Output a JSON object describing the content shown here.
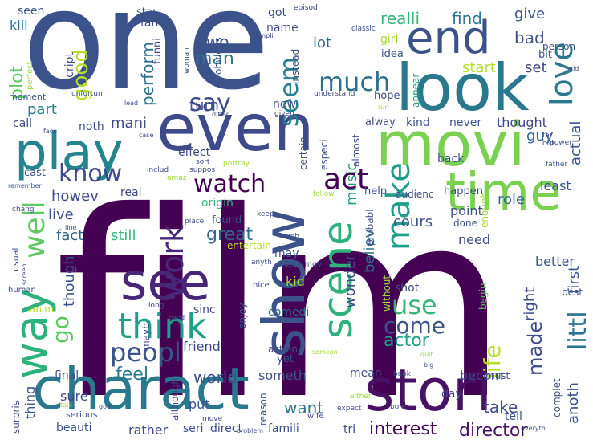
{
  "words": [
    {
      "text": "film",
      "color": "#440154"
    },
    {
      "text": "one",
      "color": "#3b528b"
    },
    {
      "text": "movi",
      "color": "#7ad151"
    },
    {
      "text": "charact",
      "color": "#2a788e"
    },
    {
      "text": "stori",
      "color": "#471164"
    },
    {
      "text": "look",
      "color": "#2a788e"
    },
    {
      "text": "even",
      "color": "#3e4a89"
    },
    {
      "text": "play",
      "color": "#25858e"
    },
    {
      "text": "time",
      "color": "#7ad151"
    },
    {
      "text": "show",
      "color": "#3b528b"
    },
    {
      "text": "end",
      "color": "#3b528b"
    },
    {
      "text": "see",
      "color": "#482677"
    },
    {
      "text": "way",
      "color": "#2db27d"
    },
    {
      "text": "scene",
      "color": "#2db27d"
    },
    {
      "text": "think",
      "color": "#1f9e89"
    },
    {
      "text": "make",
      "color": "#1f9e89"
    },
    {
      "text": "work",
      "color": "#482878"
    },
    {
      "text": "love",
      "color": "#2a788e"
    },
    {
      "text": "good",
      "color": "#b5de2b"
    },
    {
      "text": "plot",
      "color": "#5ec962"
    },
    {
      "text": "well",
      "color": "#5ec962"
    },
    {
      "text": "watch",
      "color": "#440154"
    },
    {
      "text": "much",
      "color": "#2c728e"
    },
    {
      "text": "act",
      "color": "#440154"
    },
    {
      "text": "know",
      "color": "#3e4a89"
    },
    {
      "text": "say",
      "color": "#3e4a89"
    },
    {
      "text": "seem",
      "color": "#287d8e"
    },
    {
      "text": "peopl",
      "color": "#3b528b"
    },
    {
      "text": "use",
      "color": "#35b779"
    },
    {
      "text": "littl",
      "color": "#2c728e"
    },
    {
      "text": "life",
      "color": "#b5de2b"
    },
    {
      "text": "come",
      "color": "#3b528b"
    },
    {
      "text": "made",
      "color": "#3e4a89"
    },
    {
      "text": "go",
      "color": "#5ec962"
    },
    {
      "text": "great",
      "color": "#31688e"
    },
    {
      "text": "actor",
      "color": "#1f9e89"
    },
    {
      "text": "interest",
      "color": "#440154"
    },
    {
      "text": "director",
      "color": "#471164"
    },
    {
      "text": "world",
      "color": "#3b528b"
    },
    {
      "text": "feel",
      "color": "#2a788e"
    },
    {
      "text": "want",
      "color": "#2c728e"
    },
    {
      "text": "take",
      "color": "#3e4a89"
    },
    {
      "text": "man",
      "color": "#2c728e"
    },
    {
      "text": "two",
      "color": "#3b528b"
    },
    {
      "text": "realli",
      "color": "#35b779"
    },
    {
      "text": "find",
      "color": "#2a788e"
    },
    {
      "text": "give",
      "color": "#3b528b"
    },
    {
      "text": "bad",
      "color": "#3b528b"
    },
    {
      "text": "lot",
      "color": "#31688e"
    },
    {
      "text": "start",
      "color": "#b5de2b"
    },
    {
      "text": "set",
      "color": "#3e4a89"
    },
    {
      "text": "perform",
      "color": "#2c728e"
    },
    {
      "text": "turn",
      "color": "#3b528b"
    },
    {
      "text": "part",
      "color": "#287d8e"
    },
    {
      "text": "mani",
      "color": "#3e4a89"
    },
    {
      "text": "howev",
      "color": "#3e4a89"
    },
    {
      "text": "live",
      "color": "#3b528b"
    },
    {
      "text": "fact",
      "color": "#31688e"
    },
    {
      "text": "still",
      "color": "#35b779"
    },
    {
      "text": "though",
      "color": "#3b528b"
    },
    {
      "text": "believ",
      "color": "#2c728e"
    },
    {
      "text": "wonder",
      "color": "#3e4a89"
    },
    {
      "text": "music",
      "color": "#1f9e89"
    },
    {
      "text": "actual",
      "color": "#3b528b"
    },
    {
      "text": "guy",
      "color": "#31688e"
    },
    {
      "text": "thought",
      "color": "#3e4a89"
    },
    {
      "text": "never",
      "color": "#3b528b"
    },
    {
      "text": "first",
      "color": "#3b528b"
    },
    {
      "text": "right",
      "color": "#3e4a89"
    },
    {
      "text": "role",
      "color": "#31688e"
    },
    {
      "text": "least",
      "color": "#3b528b"
    },
    {
      "text": "cours",
      "color": "#3b528b"
    },
    {
      "text": "point",
      "color": "#3b528b"
    },
    {
      "text": "need",
      "color": "#3e4a89"
    },
    {
      "text": "better",
      "color": "#3b528b"
    },
    {
      "text": "anoth",
      "color": "#3b528b"
    },
    {
      "text": "shot",
      "color": "#3e4a89"
    },
    {
      "text": "kid",
      "color": "#a0da39"
    },
    {
      "text": "comedi",
      "color": "#31688e"
    },
    {
      "text": "friend",
      "color": "#3e4a89"
    },
    {
      "text": "someth",
      "color": "#3b528b"
    },
    {
      "text": "becom",
      "color": "#3e4a89"
    },
    {
      "text": "tell",
      "color": "#3b528b"
    },
    {
      "text": "day",
      "color": "#3e4a89"
    },
    {
      "text": "mean",
      "color": "#3e4a89"
    },
    {
      "text": "thing",
      "color": "#3b528b"
    },
    {
      "text": "sure",
      "color": "#3e4a89"
    },
    {
      "text": "final",
      "color": "#3b528b"
    },
    {
      "text": "beauti",
      "color": "#3b528b"
    },
    {
      "text": "rather",
      "color": "#3e4a89"
    },
    {
      "text": "seri",
      "color": "#3b528b"
    },
    {
      "text": "direct",
      "color": "#3e4a89"
    },
    {
      "text": "famili",
      "color": "#3b528b"
    },
    {
      "text": "tri",
      "color": "#3e4a89"
    },
    {
      "text": "put",
      "color": "#3b528b"
    },
    {
      "text": "real",
      "color": "#3e4a89"
    },
    {
      "text": "origin",
      "color": "#35b779"
    },
    {
      "text": "found",
      "color": "#3b528b"
    },
    {
      "text": "effect",
      "color": "#3e4a89"
    },
    {
      "text": "help",
      "color": "#3b528b"
    },
    {
      "text": "back",
      "color": "#3b528b"
    },
    {
      "text": "happen",
      "color": "#3e4a89"
    },
    {
      "text": "kind",
      "color": "#3b528b"
    },
    {
      "text": "alway",
      "color": "#3e4a89"
    },
    {
      "text": "noth",
      "color": "#3b528b"
    },
    {
      "text": "call",
      "color": "#3e4a89"
    },
    {
      "text": "cast",
      "color": "#3b528b"
    },
    {
      "text": "new",
      "color": "#3b528b"
    },
    {
      "text": "got",
      "color": "#3e4a89"
    },
    {
      "text": "star",
      "color": "#3b528b"
    },
    {
      "text": "fan",
      "color": "#3e4a89"
    },
    {
      "text": "seen",
      "color": "#3b528b"
    },
    {
      "text": "kill",
      "color": "#2c728e"
    },
    {
      "text": "name",
      "color": "#3e4a89"
    },
    {
      "text": "idea",
      "color": "#3b528b"
    },
    {
      "text": "girl",
      "color": "#a0da39"
    },
    {
      "text": "bit",
      "color": "#3b528b"
    },
    {
      "text": "hope",
      "color": "#3e4a89"
    },
    {
      "text": "script",
      "color": "#3b528b"
    },
    {
      "text": "funni",
      "color": "#3e4a89"
    },
    {
      "text": "obvious",
      "color": "#3b528b"
    },
    {
      "text": "instead",
      "color": "#3e4a89"
    },
    {
      "text": "appear",
      "color": "#1f9e89"
    },
    {
      "text": "person",
      "color": "#3b528b"
    },
    {
      "text": "certain",
      "color": "#3e4a89"
    },
    {
      "text": "especi",
      "color": "#3b528b"
    },
    {
      "text": "almost",
      "color": "#3e4a89"
    },
    {
      "text": "audienc",
      "color": "#3e4a89"
    },
    {
      "text": "enough",
      "color": "#a0da39"
    },
    {
      "text": "done",
      "color": "#3b528b"
    },
    {
      "text": "entertain",
      "color": "#b5de2b"
    },
    {
      "text": "may",
      "color": "#3b528b"
    },
    {
      "text": "probabl",
      "color": "#3e4a89"
    },
    {
      "text": "without",
      "color": "#a0da39"
    },
    {
      "text": "begin",
      "color": "#5ec962"
    },
    {
      "text": "mayb",
      "color": "#3e4a89"
    },
    {
      "text": "enjoy",
      "color": "#3b528b"
    },
    {
      "text": "action",
      "color": "#3e4a89"
    },
    {
      "text": "yet",
      "color": "#3b528b"
    },
    {
      "text": "sinc",
      "color": "#3e4a89"
    },
    {
      "text": "anim",
      "color": "#b5de2b"
    },
    {
      "text": "although",
      "color": "#3e4a89"
    },
    {
      "text": "reason",
      "color": "#3b528b"
    },
    {
      "text": "must",
      "color": "#3e4a89"
    },
    {
      "text": "complet",
      "color": "#3b528b"
    },
    {
      "text": "surpris",
      "color": "#3e4a89"
    },
    {
      "text": "serious",
      "color": "#3b528b"
    },
    {
      "text": "best",
      "color": "#3e4a89"
    },
    {
      "text": "usual",
      "color": "#3b528b"
    },
    {
      "text": "human",
      "color": "#3e4a89"
    },
    {
      "text": "watch movi",
      "color": "#3b528b"
    },
    {
      "text": "nice",
      "color": "#3e4a89"
    },
    {
      "text": "place",
      "color": "#3b528b"
    },
    {
      "text": "laugh",
      "color": "#3e4a89"
    },
    {
      "text": "keep",
      "color": "#3b528b"
    },
    {
      "text": "follow",
      "color": "#a0da39"
    },
    {
      "text": "includ",
      "color": "#3e4a89"
    },
    {
      "text": "amaz",
      "color": "#a0da39"
    },
    {
      "text": "sort",
      "color": "#3b528b"
    },
    {
      "text": "portray",
      "color": "#a0da39"
    },
    {
      "text": "suppos",
      "color": "#3e4a89"
    },
    {
      "text": "father",
      "color": "#3b528b"
    },
    {
      "text": "old",
      "color": "#3e4a89"
    },
    {
      "text": "power",
      "color": "#3b528b"
    },
    {
      "text": "far",
      "color": "#3e4a89"
    },
    {
      "text": "moment",
      "color": "#3b528b"
    },
    {
      "text": "unfortun",
      "color": "#3e4a89"
    },
    {
      "text": "perfect",
      "color": "#a0da39"
    },
    {
      "text": "woman",
      "color": "#3b528b"
    },
    {
      "text": "simpli",
      "color": "#3e4a89"
    },
    {
      "text": "classic",
      "color": "#3b528b"
    },
    {
      "text": "episod",
      "color": "#3e4a89"
    },
    {
      "text": "said",
      "color": "#3b528b"
    },
    {
      "text": "understand",
      "color": "#3e4a89"
    },
    {
      "text": "run",
      "color": "#a0da39"
    },
    {
      "text": "differ",
      "color": "#3b528b"
    },
    {
      "text": "given",
      "color": "#3e4a89"
    },
    {
      "text": "face",
      "color": "#3b528b"
    },
    {
      "text": "case",
      "color": "#3e4a89"
    },
    {
      "text": "remember",
      "color": "#3b528b"
    },
    {
      "text": "chang",
      "color": "#3e4a89"
    },
    {
      "text": "line",
      "color": "#3b528b"
    },
    {
      "text": "long",
      "color": "#3e4a89"
    },
    {
      "text": "hand",
      "color": "#3b528b"
    },
    {
      "text": "screen",
      "color": "#3e4a89"
    },
    {
      "text": "anyth",
      "color": "#3b528b"
    },
    {
      "text": "someon",
      "color": "#a0da39"
    },
    {
      "text": "book",
      "color": "#3e4a89"
    },
    {
      "text": "quit",
      "color": "#a0da39"
    },
    {
      "text": "big",
      "color": "#3b528b"
    },
    {
      "text": "either",
      "color": "#a0da39"
    },
    {
      "text": "expect",
      "color": "#3e4a89"
    },
    {
      "text": "bore",
      "color": "#3b528b"
    },
    {
      "text": "wife",
      "color": "#3e4a89"
    },
    {
      "text": "everyth",
      "color": "#3b528b"
    },
    {
      "text": "move",
      "color": "#3e4a89"
    },
    {
      "text": "problem",
      "color": "#3b528b"
    },
    {
      "text": "talk",
      "color": "#a0da39"
    },
    {
      "text": "goe",
      "color": "#3e4a89"
    },
    {
      "text": "lead",
      "color": "#3b528b"
    }
  ]
}
